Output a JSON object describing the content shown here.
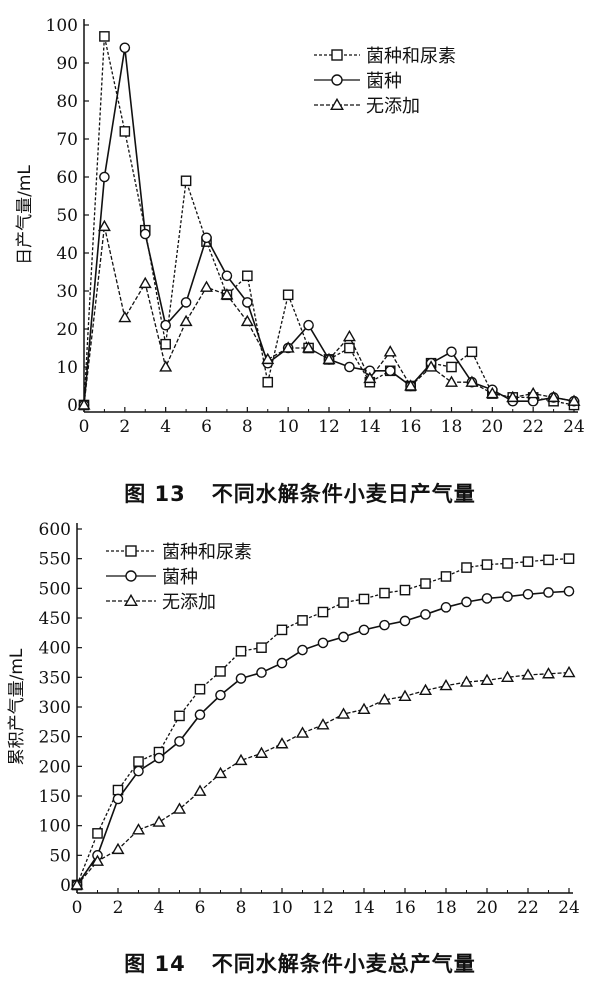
{
  "chart_data": [
    {
      "type": "line",
      "ylabel": "日产气量/mL",
      "xlabel": "",
      "xlim": [
        0,
        24
      ],
      "ylim": [
        0,
        100
      ],
      "x_ticks": [
        0,
        2,
        4,
        6,
        8,
        10,
        12,
        14,
        16,
        18,
        20,
        22,
        24
      ],
      "y_ticks": [
        0,
        10,
        20,
        30,
        40,
        50,
        60,
        70,
        80,
        90,
        100
      ],
      "legend_position": "top-right",
      "x": [
        0,
        1,
        2,
        3,
        4,
        5,
        6,
        7,
        8,
        9,
        10,
        11,
        12,
        13,
        14,
        15,
        16,
        17,
        18,
        19,
        20,
        21,
        22,
        23,
        24
      ],
      "series": [
        {
          "name": "菌种和尿素",
          "marker": "square",
          "values": [
            0,
            97,
            72,
            46,
            16,
            59,
            43,
            29,
            34,
            6,
            29,
            15,
            12,
            15,
            6,
            9,
            5,
            11,
            10,
            14,
            3,
            2,
            2,
            1,
            0
          ]
        },
        {
          "name": "菌种",
          "marker": "circle",
          "values": [
            0,
            60,
            94,
            45,
            21,
            27,
            44,
            34,
            27,
            11,
            15,
            21,
            12,
            10,
            9,
            9,
            5,
            11,
            14,
            6,
            4,
            1,
            1,
            2,
            1
          ]
        },
        {
          "name": "无添加",
          "marker": "triangle",
          "values": [
            0,
            47,
            23,
            32,
            10,
            22,
            31,
            29,
            22,
            12,
            15,
            15,
            12,
            18,
            7,
            14,
            5,
            10,
            6,
            6,
            3,
            2,
            3,
            2,
            1
          ]
        }
      ]
    },
    {
      "type": "line",
      "ylabel": "累积产气量/mL",
      "xlabel": "",
      "xlim": [
        0,
        24
      ],
      "ylim": [
        0,
        600
      ],
      "x_ticks": [
        0,
        2,
        4,
        6,
        8,
        10,
        12,
        14,
        16,
        18,
        20,
        22,
        24
      ],
      "y_ticks": [
        0,
        50,
        100,
        150,
        200,
        250,
        300,
        350,
        400,
        450,
        500,
        550,
        600
      ],
      "legend_position": "top-left",
      "x": [
        0,
        1,
        2,
        3,
        4,
        5,
        6,
        7,
        8,
        9,
        10,
        11,
        12,
        13,
        14,
        15,
        16,
        17,
        18,
        19,
        20,
        21,
        22,
        23,
        24
      ],
      "series": [
        {
          "name": "菌种和尿素",
          "marker": "square",
          "values": [
            0,
            87,
            160,
            208,
            224,
            285,
            330,
            360,
            394,
            400,
            430,
            446,
            460,
            476,
            482,
            492,
            497,
            508,
            520,
            535,
            540,
            542,
            545,
            548,
            550
          ]
        },
        {
          "name": "菌种",
          "marker": "circle",
          "values": [
            0,
            50,
            145,
            192,
            214,
            242,
            287,
            320,
            348,
            358,
            374,
            396,
            408,
            418,
            430,
            438,
            445,
            456,
            468,
            477,
            483,
            486,
            490,
            493,
            495
          ]
        },
        {
          "name": "无添加",
          "marker": "triangle",
          "values": [
            0,
            40,
            60,
            93,
            106,
            128,
            158,
            188,
            210,
            222,
            238,
            256,
            270,
            288,
            296,
            312,
            318,
            328,
            336,
            342,
            345,
            350,
            354,
            356,
            358
          ]
        }
      ]
    }
  ],
  "captions": {
    "fig13_number": "图 13",
    "fig13_title": "不同水解条件小麦日产气量",
    "fig14_number": "图 14",
    "fig14_title": "不同水解条件小麦总产气量"
  },
  "colors": {
    "ink": "#111111",
    "background": "#ffffff"
  }
}
